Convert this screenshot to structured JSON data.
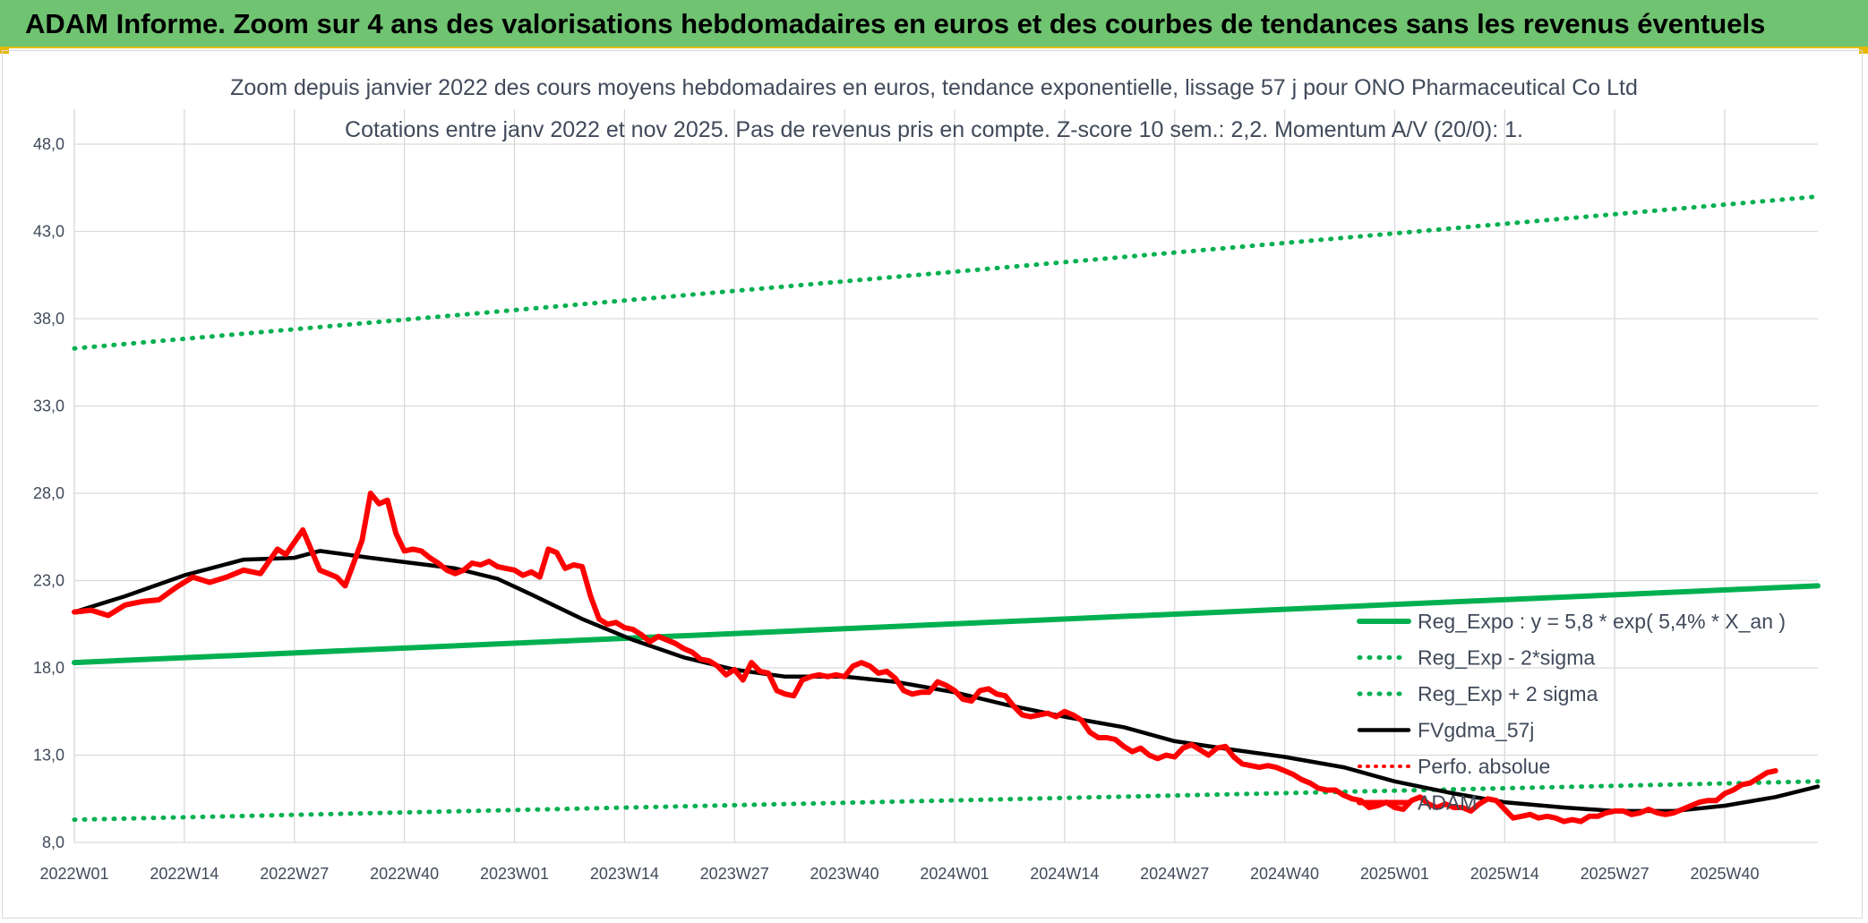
{
  "banner": {
    "title": "ADAM Informe. Zoom sur 4 ans des valorisations hebdomadaires en euros et des courbes de tendances sans les revenus éventuels"
  },
  "colors": {
    "banner": "#6fc371",
    "adam": "#ff0000",
    "trend": "#00b050",
    "fv": "#000000",
    "perfo": "#ff0000",
    "grid": "#d9d9d9"
  },
  "chart_data": {
    "type": "line",
    "title": "Zoom depuis janvier 2022 des cours moyens hebdomadaires en euros, tendance exponentielle, lissage 57 j pour ONO Pharmaceutical Co Ltd",
    "subtitle": "Cotations entre janv 2022 et nov 2025. Pas de revenus pris en compte. Z-score 10 sem.: 2,2. Momentum A/V (20/0): 1.",
    "xlabel": "",
    "ylabel": "",
    "ylim": [
      8,
      50
    ],
    "yticks": [
      "8,0",
      "13,0",
      "18,0",
      "23,0",
      "28,0",
      "33,0",
      "38,0",
      "43,0",
      "48,0"
    ],
    "xticks": [
      "2022W01",
      "2022W14",
      "2022W27",
      "2022W40",
      "2023W01",
      "2023W14",
      "2023W27",
      "2023W40",
      "2024W01",
      "2024W14",
      "2024W27",
      "2024W40",
      "2025W01",
      "2025W14",
      "2025W27",
      "2025W40"
    ],
    "grid": true,
    "legend_position": "right",
    "series": [
      {
        "name": "Reg_Expo : y = 5,8 * exp( 5,4% *  X_an )",
        "style": "solid",
        "points": [
          [
            0,
            18.3
          ],
          [
            206,
            22.7
          ]
        ]
      },
      {
        "name": "Reg_Exp - 2*sigma",
        "style": "dotted",
        "points": [
          [
            0,
            9.3
          ],
          [
            206,
            11.5
          ]
        ]
      },
      {
        "name": "Reg_Exp + 2 sigma",
        "style": "dotted",
        "points": [
          [
            0,
            36.3
          ],
          [
            206,
            45.0
          ]
        ]
      },
      {
        "name": "FVgdma_57j",
        "style": "solid",
        "points": [
          [
            0,
            21.2
          ],
          [
            6,
            22.1
          ],
          [
            13,
            23.3
          ],
          [
            20,
            24.2
          ],
          [
            26,
            24.3
          ],
          [
            29,
            24.7
          ],
          [
            35,
            24.3
          ],
          [
            45,
            23.7
          ],
          [
            50,
            23.1
          ],
          [
            54,
            22.2
          ],
          [
            60,
            20.8
          ],
          [
            66,
            19.6
          ],
          [
            72,
            18.6
          ],
          [
            78,
            17.9
          ],
          [
            84,
            17.5
          ],
          [
            91,
            17.5
          ],
          [
            97,
            17.2
          ],
          [
            104,
            16.6
          ],
          [
            110,
            15.9
          ],
          [
            117,
            15.2
          ],
          [
            124,
            14.6
          ],
          [
            130,
            13.8
          ],
          [
            137,
            13.3
          ],
          [
            143,
            12.9
          ],
          [
            150,
            12.3
          ],
          [
            156,
            11.5
          ],
          [
            163,
            10.8
          ],
          [
            169,
            10.3
          ],
          [
            176,
            10.0
          ],
          [
            182,
            9.8
          ],
          [
            189,
            9.8
          ],
          [
            195,
            10.1
          ],
          [
            201,
            10.6
          ],
          [
            206,
            11.2
          ]
        ]
      },
      {
        "name": "Perfo. absolue",
        "style": "dotted",
        "points": []
      },
      {
        "name": "ADAM",
        "style": "solid",
        "points": [
          [
            0,
            21.2
          ],
          [
            2,
            21.3
          ],
          [
            4,
            21.0
          ],
          [
            6,
            21.6
          ],
          [
            8,
            21.8
          ],
          [
            10,
            21.9
          ],
          [
            12,
            22.6
          ],
          [
            14,
            23.2
          ],
          [
            16,
            22.9
          ],
          [
            18,
            23.2
          ],
          [
            20,
            23.6
          ],
          [
            22,
            23.4
          ],
          [
            24,
            24.8
          ],
          [
            25,
            24.5
          ],
          [
            27,
            25.9
          ],
          [
            29,
            23.6
          ],
          [
            30,
            23.4
          ],
          [
            31,
            23.2
          ],
          [
            32,
            22.7
          ],
          [
            33,
            24.0
          ],
          [
            34,
            25.3
          ],
          [
            35,
            28.0
          ],
          [
            36,
            27.4
          ],
          [
            37,
            27.6
          ],
          [
            38,
            25.7
          ],
          [
            39,
            24.7
          ],
          [
            40,
            24.8
          ],
          [
            41,
            24.7
          ],
          [
            42,
            24.3
          ],
          [
            43,
            24.0
          ],
          [
            44,
            23.6
          ],
          [
            45,
            23.4
          ],
          [
            46,
            23.6
          ],
          [
            47,
            24.0
          ],
          [
            48,
            23.9
          ],
          [
            49,
            24.1
          ],
          [
            50,
            23.8
          ],
          [
            51,
            23.7
          ],
          [
            52,
            23.6
          ],
          [
            53,
            23.3
          ],
          [
            54,
            23.5
          ],
          [
            55,
            23.2
          ],
          [
            56,
            24.8
          ],
          [
            57,
            24.6
          ],
          [
            58,
            23.7
          ],
          [
            59,
            23.9
          ],
          [
            60,
            23.8
          ],
          [
            61,
            22.1
          ],
          [
            62,
            20.8
          ],
          [
            63,
            20.5
          ],
          [
            64,
            20.6
          ],
          [
            65,
            20.3
          ],
          [
            66,
            20.2
          ],
          [
            67,
            19.9
          ],
          [
            68,
            19.5
          ],
          [
            69,
            19.8
          ],
          [
            70,
            19.6
          ],
          [
            71,
            19.4
          ],
          [
            72,
            19.1
          ],
          [
            73,
            18.9
          ],
          [
            74,
            18.5
          ],
          [
            75,
            18.4
          ],
          [
            76,
            18.1
          ],
          [
            77,
            17.6
          ],
          [
            78,
            17.9
          ],
          [
            79,
            17.3
          ],
          [
            80,
            18.3
          ],
          [
            81,
            17.8
          ],
          [
            82,
            17.7
          ],
          [
            83,
            16.7
          ],
          [
            84,
            16.5
          ],
          [
            85,
            16.4
          ],
          [
            86,
            17.3
          ],
          [
            87,
            17.5
          ],
          [
            88,
            17.6
          ],
          [
            89,
            17.5
          ],
          [
            90,
            17.6
          ],
          [
            91,
            17.5
          ],
          [
            92,
            18.1
          ],
          [
            93,
            18.3
          ],
          [
            94,
            18.1
          ],
          [
            95,
            17.7
          ],
          [
            96,
            17.8
          ],
          [
            97,
            17.4
          ],
          [
            98,
            16.7
          ],
          [
            99,
            16.5
          ],
          [
            100,
            16.6
          ],
          [
            101,
            16.6
          ],
          [
            102,
            17.2
          ],
          [
            103,
            17.0
          ],
          [
            104,
            16.7
          ],
          [
            105,
            16.2
          ],
          [
            106,
            16.1
          ],
          [
            107,
            16.7
          ],
          [
            108,
            16.8
          ],
          [
            109,
            16.5
          ],
          [
            110,
            16.4
          ],
          [
            111,
            15.8
          ],
          [
            112,
            15.3
          ],
          [
            113,
            15.2
          ],
          [
            114,
            15.3
          ],
          [
            115,
            15.4
          ],
          [
            116,
            15.2
          ],
          [
            117,
            15.5
          ],
          [
            118,
            15.3
          ],
          [
            119,
            15.0
          ],
          [
            120,
            14.3
          ],
          [
            121,
            14.0
          ],
          [
            122,
            14.0
          ],
          [
            123,
            13.9
          ],
          [
            124,
            13.5
          ],
          [
            125,
            13.2
          ],
          [
            126,
            13.4
          ],
          [
            127,
            13.0
          ],
          [
            128,
            12.8
          ],
          [
            129,
            13.0
          ],
          [
            130,
            12.9
          ],
          [
            131,
            13.4
          ],
          [
            132,
            13.6
          ],
          [
            133,
            13.3
          ],
          [
            134,
            13.0
          ],
          [
            135,
            13.4
          ],
          [
            136,
            13.5
          ],
          [
            137,
            12.9
          ],
          [
            138,
            12.5
          ],
          [
            139,
            12.4
          ],
          [
            140,
            12.3
          ],
          [
            141,
            12.4
          ],
          [
            142,
            12.3
          ],
          [
            143,
            12.1
          ],
          [
            144,
            11.9
          ],
          [
            145,
            11.6
          ],
          [
            146,
            11.4
          ],
          [
            147,
            11.1
          ],
          [
            148,
            11.0
          ],
          [
            149,
            11.0
          ],
          [
            150,
            10.7
          ],
          [
            151,
            10.5
          ],
          [
            152,
            10.4
          ],
          [
            153,
            10.0
          ],
          [
            154,
            10.1
          ],
          [
            155,
            10.3
          ],
          [
            156,
            10.0
          ],
          [
            157,
            9.9
          ],
          [
            158,
            10.4
          ],
          [
            159,
            10.6
          ],
          [
            160,
            10.2
          ],
          [
            161,
            10.0
          ],
          [
            162,
            10.2
          ],
          [
            163,
            10.0
          ],
          [
            164,
            10.0
          ],
          [
            165,
            9.8
          ],
          [
            166,
            10.2
          ],
          [
            167,
            10.5
          ],
          [
            168,
            10.4
          ],
          [
            169,
            9.9
          ],
          [
            170,
            9.4
          ],
          [
            171,
            9.5
          ],
          [
            172,
            9.6
          ],
          [
            173,
            9.4
          ],
          [
            174,
            9.5
          ],
          [
            175,
            9.4
          ],
          [
            176,
            9.2
          ],
          [
            177,
            9.3
          ],
          [
            178,
            9.2
          ],
          [
            179,
            9.5
          ],
          [
            180,
            9.5
          ],
          [
            181,
            9.7
          ],
          [
            182,
            9.8
          ],
          [
            183,
            9.8
          ],
          [
            184,
            9.6
          ],
          [
            185,
            9.7
          ],
          [
            186,
            9.9
          ],
          [
            187,
            9.7
          ],
          [
            188,
            9.6
          ],
          [
            189,
            9.7
          ],
          [
            190,
            9.9
          ],
          [
            191,
            10.1
          ],
          [
            192,
            10.3
          ],
          [
            193,
            10.4
          ],
          [
            194,
            10.4
          ],
          [
            195,
            10.8
          ],
          [
            196,
            11.0
          ],
          [
            197,
            11.3
          ],
          [
            198,
            11.4
          ],
          [
            199,
            11.7
          ],
          [
            200,
            12.0
          ],
          [
            201,
            12.1
          ]
        ]
      }
    ]
  }
}
